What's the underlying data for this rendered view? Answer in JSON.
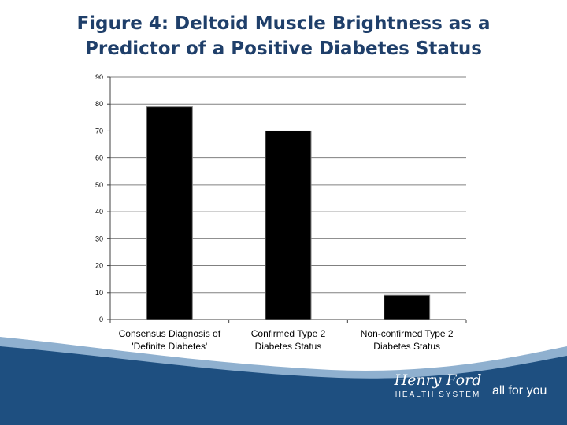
{
  "slide": {
    "title_line1": "Figure 4: Deltoid  Muscle Brightness as  a",
    "title_line2": "Predictor of a Positive Diabetes Status"
  },
  "footer": {
    "logo_line1": "Henry Ford",
    "logo_line2": "HEALTH SYSTEM",
    "tagline": "all for you"
  },
  "colors": {
    "title": "#1f3f6a",
    "bar": "#000000",
    "grid": "#808080",
    "footer_blue": "#1e4f80"
  },
  "chart_data": {
    "type": "bar",
    "categories": [
      [
        "Consensus Diagnosis of",
        "'Definite Diabetes'"
      ],
      [
        "Confirmed Type 2",
        "Diabetes Status"
      ],
      [
        "Non-confirmed Type 2",
        "Diabetes Status"
      ]
    ],
    "values": [
      79,
      70,
      9
    ],
    "yticks": [
      0,
      10,
      20,
      30,
      40,
      50,
      60,
      70,
      80,
      90
    ],
    "ylim": [
      0,
      90
    ],
    "grid": true,
    "legend": "none"
  }
}
